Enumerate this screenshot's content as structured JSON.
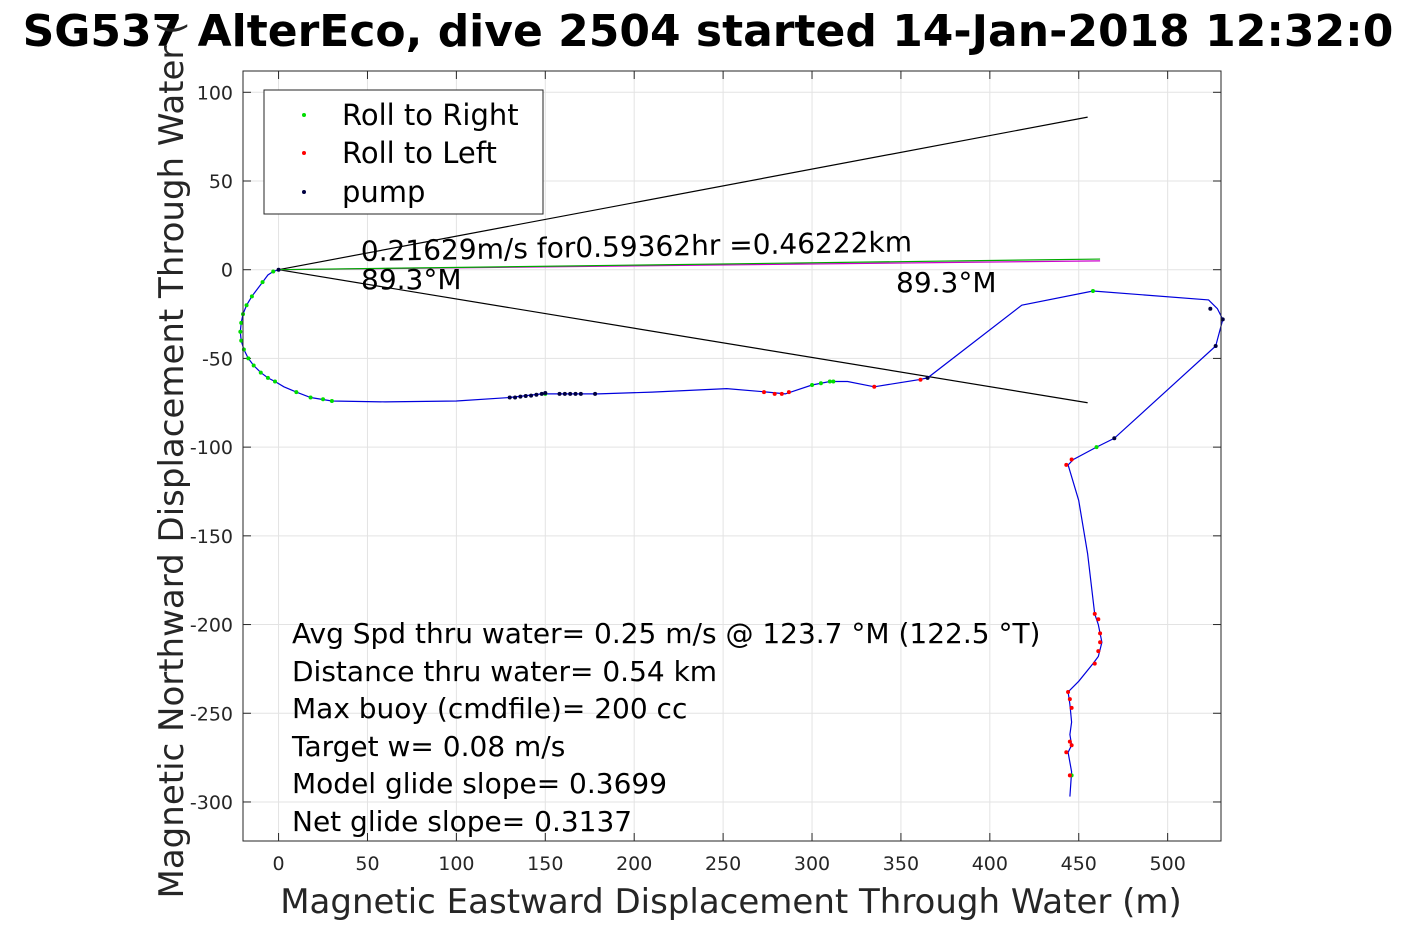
{
  "chart_data": {
    "type": "line",
    "title": "SG537 AlterEco, dive 2504 started 14-Jan-2018 12:32:0",
    "xlabel": "Magnetic Eastward Displacement Through Water (m)",
    "ylabel": "Magnetic Northward Displacement Through Water (",
    "xlim": [
      -20,
      530
    ],
    "ylim": [
      -322,
      112
    ],
    "xticks": [
      0,
      50,
      100,
      150,
      200,
      250,
      300,
      350,
      400,
      450,
      500
    ],
    "yticks": [
      100,
      50,
      0,
      -50,
      -100,
      -150,
      -200,
      -250,
      -300
    ],
    "grid": true,
    "legend": {
      "position": "top-left",
      "entries": [
        {
          "label": "Roll to Right",
          "color": "#00dd00"
        },
        {
          "label": "Roll to Left",
          "color": "#ff0000"
        },
        {
          "label": "pump",
          "color": "#000040"
        }
      ]
    },
    "track": {
      "color": "#0000dd",
      "points": [
        [
          0,
          0
        ],
        [
          -3,
          -1
        ],
        [
          -6,
          -3
        ],
        [
          -9,
          -7
        ],
        [
          -12,
          -11
        ],
        [
          -15,
          -15
        ],
        [
          -18,
          -20
        ],
        [
          -20,
          -25
        ],
        [
          -21,
          -30
        ],
        [
          -21.5,
          -35
        ],
        [
          -21,
          -40
        ],
        [
          -19.5,
          -45
        ],
        [
          -17,
          -50
        ],
        [
          -14,
          -54
        ],
        [
          -10,
          -58
        ],
        [
          -6,
          -61
        ],
        [
          -2,
          -63
        ],
        [
          3,
          -66
        ],
        [
          10,
          -69
        ],
        [
          18,
          -72
        ],
        [
          30,
          -74
        ],
        [
          60,
          -74.5
        ],
        [
          100,
          -74
        ],
        [
          130,
          -72
        ],
        [
          148,
          -70
        ],
        [
          165,
          -70
        ],
        [
          180,
          -70
        ],
        [
          210,
          -69
        ],
        [
          252,
          -67
        ],
        [
          275,
          -69
        ],
        [
          285,
          -70
        ],
        [
          300,
          -65
        ],
        [
          310,
          -63
        ],
        [
          320,
          -63
        ],
        [
          335,
          -66
        ],
        [
          360,
          -62
        ],
        [
          365,
          -61
        ],
        [
          418,
          -20
        ],
        [
          458,
          -12
        ],
        [
          523,
          -17
        ],
        [
          528,
          -22
        ],
        [
          531,
          -28
        ],
        [
          527,
          -43
        ],
        [
          470,
          -95
        ],
        [
          460,
          -100
        ],
        [
          447,
          -107
        ],
        [
          444,
          -110
        ],
        [
          450,
          -130
        ],
        [
          455,
          -160
        ],
        [
          459,
          -194
        ],
        [
          461,
          -200
        ],
        [
          463,
          -210
        ],
        [
          461,
          -218
        ],
        [
          458,
          -222
        ],
        [
          450,
          -232
        ],
        [
          444,
          -238
        ],
        [
          445,
          -245
        ],
        [
          446,
          -255
        ],
        [
          445,
          -262
        ],
        [
          446,
          -268
        ],
        [
          444,
          -272
        ],
        [
          446,
          -283
        ],
        [
          445,
          -297
        ]
      ]
    },
    "roll_right": [
      [
        -3,
        -1
      ],
      [
        -9,
        -7
      ],
      [
        -15,
        -15
      ],
      [
        -18,
        -20
      ],
      [
        -20,
        -25
      ],
      [
        -21,
        -30
      ],
      [
        -21.5,
        -35
      ],
      [
        -21,
        -40
      ],
      [
        -19.5,
        -45
      ],
      [
        -17,
        -50
      ],
      [
        -14,
        -54
      ],
      [
        -10,
        -58
      ],
      [
        -6,
        -61
      ],
      [
        -2,
        -63
      ],
      [
        10,
        -69
      ],
      [
        18,
        -72
      ],
      [
        25,
        -73
      ],
      [
        30,
        -74
      ],
      [
        150,
        -70
      ],
      [
        300,
        -65
      ],
      [
        305,
        -64
      ],
      [
        310,
        -63
      ],
      [
        312,
        -63
      ],
      [
        460,
        -100
      ],
      [
        458,
        -12
      ],
      [
        446,
        -285
      ]
    ],
    "roll_left": [
      [
        273,
        -69
      ],
      [
        279,
        -70
      ],
      [
        283,
        -70
      ],
      [
        287,
        -69
      ],
      [
        335,
        -66
      ],
      [
        361,
        -62
      ],
      [
        446,
        -107
      ],
      [
        443,
        -110
      ],
      [
        459,
        -194
      ],
      [
        461,
        -197
      ],
      [
        462,
        -205
      ],
      [
        462,
        -210
      ],
      [
        461,
        -215
      ],
      [
        459,
        -222
      ],
      [
        444,
        -238
      ],
      [
        445,
        -242
      ],
      [
        446,
        -247
      ],
      [
        445,
        -266
      ],
      [
        446,
        -268
      ],
      [
        443,
        -272
      ],
      [
        445,
        -285
      ]
    ],
    "pump": [
      [
        0,
        0
      ],
      [
        130,
        -72
      ],
      [
        133,
        -72
      ],
      [
        136,
        -71.5
      ],
      [
        139,
        -71.2
      ],
      [
        142,
        -71
      ],
      [
        145,
        -70.5
      ],
      [
        148,
        -70
      ],
      [
        150,
        -69.5
      ],
      [
        158,
        -70
      ],
      [
        161,
        -70
      ],
      [
        164,
        -70
      ],
      [
        167,
        -70
      ],
      [
        170,
        -70
      ],
      [
        178,
        -70
      ],
      [
        365,
        -61
      ],
      [
        470,
        -95
      ],
      [
        527,
        -43
      ],
      [
        524,
        -22
      ],
      [
        531,
        -28
      ]
    ],
    "cone_lines": [
      {
        "from": [
          0,
          0
        ],
        "to": [
          455,
          86
        ],
        "color": "#000000"
      },
      {
        "from": [
          0,
          0
        ],
        "to": [
          455,
          -75
        ],
        "color": "#000000"
      },
      {
        "from": [
          0,
          0
        ],
        "to": [
          462,
          5
        ],
        "color": "#cc00cc"
      },
      {
        "from": [
          0,
          0
        ],
        "to": [
          462,
          6
        ],
        "color": "#00aa00"
      }
    ],
    "annotations": {
      "speed": "0.21629m/s for0.59362hr =0.46222km",
      "heading_start": "89.3°M",
      "heading_end": "89.3°M"
    },
    "stats": [
      "Avg Spd thru water=  0.25 m/s @ 123.7 °M (122.5 °T)",
      "Distance thru water=  0.54 km",
      "Max buoy (cmdfile)= 200 cc",
      "Target w= 0.08 m/s",
      "Model glide slope= 0.3699",
      "Net glide slope= 0.3137"
    ]
  }
}
